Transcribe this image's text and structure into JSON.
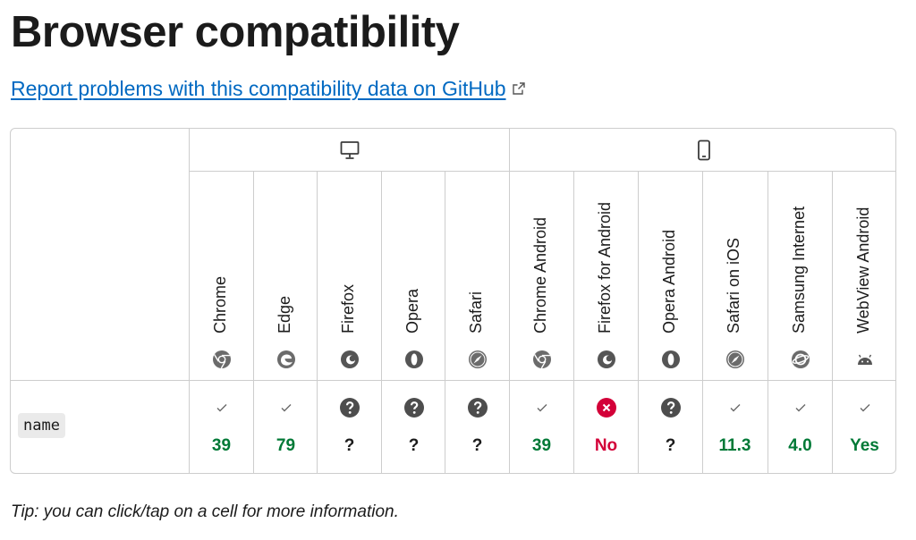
{
  "title": "Browser compatibility",
  "report_link": "Report problems with this compatibility data on GitHub",
  "platforms": [
    {
      "name": "desktop",
      "icon": "desktop-icon"
    },
    {
      "name": "mobile",
      "icon": "mobile-icon"
    }
  ],
  "browsers": [
    {
      "name": "Chrome",
      "icon": "chrome-icon"
    },
    {
      "name": "Edge",
      "icon": "edge-icon"
    },
    {
      "name": "Firefox",
      "icon": "firefox-icon"
    },
    {
      "name": "Opera",
      "icon": "opera-icon"
    },
    {
      "name": "Safari",
      "icon": "safari-icon"
    },
    {
      "name": "Chrome Android",
      "icon": "chrome-icon"
    },
    {
      "name": "Firefox for Android",
      "icon": "firefox-icon"
    },
    {
      "name": "Opera Android",
      "icon": "opera-icon"
    },
    {
      "name": "Safari on iOS",
      "icon": "safari-icon"
    },
    {
      "name": "Samsung Internet",
      "icon": "samsung-internet-icon"
    },
    {
      "name": "WebView Android",
      "icon": "android-icon"
    }
  ],
  "feature": {
    "name": "name",
    "support": [
      {
        "status": "yes",
        "value": "39"
      },
      {
        "status": "yes",
        "value": "79"
      },
      {
        "status": "unknown",
        "value": "?"
      },
      {
        "status": "unknown",
        "value": "?"
      },
      {
        "status": "unknown",
        "value": "?"
      },
      {
        "status": "yes",
        "value": "39"
      },
      {
        "status": "no",
        "value": "No"
      },
      {
        "status": "unknown",
        "value": "?"
      },
      {
        "status": "yes",
        "value": "11.3"
      },
      {
        "status": "yes",
        "value": "4.0"
      },
      {
        "status": "yes",
        "value": "Yes"
      }
    ]
  },
  "tip": "Tip: you can click/tap on a cell for more information.",
  "colors": {
    "link": "#0069c2",
    "yes": "#007936",
    "no": "#d30038",
    "border": "#cdcdcd"
  }
}
